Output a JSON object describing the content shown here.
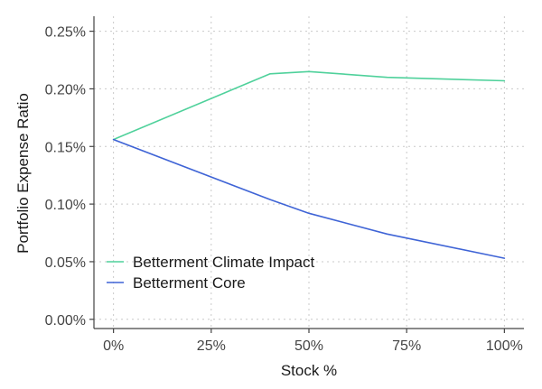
{
  "chart_data": {
    "type": "line",
    "title": "",
    "xlabel": "Stock %",
    "ylabel": "Portfolio Expense Ratio",
    "x_ticks": [
      {
        "value": 0,
        "label": "0%"
      },
      {
        "value": 25,
        "label": "25%"
      },
      {
        "value": 50,
        "label": "50%"
      },
      {
        "value": 75,
        "label": "75%"
      },
      {
        "value": 100,
        "label": "100%"
      }
    ],
    "y_ticks": [
      {
        "value": 0.0,
        "label": "0.00%"
      },
      {
        "value": 0.05,
        "label": "0.05%"
      },
      {
        "value": 0.1,
        "label": "0.10%"
      },
      {
        "value": 0.15,
        "label": "0.15%"
      },
      {
        "value": 0.2,
        "label": "0.20%"
      },
      {
        "value": 0.25,
        "label": "0.25%"
      }
    ],
    "xlim": [
      -5,
      105
    ],
    "ylim": [
      -0.008,
      0.263
    ],
    "grid": true,
    "legend_position": "bottom-left",
    "series": [
      {
        "name": "Betterment Climate Impact",
        "color": "#4fd19b",
        "points": [
          {
            "x": 0,
            "y": 0.156
          },
          {
            "x": 40,
            "y": 0.213
          },
          {
            "x": 50,
            "y": 0.215
          },
          {
            "x": 70,
            "y": 0.21
          },
          {
            "x": 100,
            "y": 0.207
          }
        ]
      },
      {
        "name": "Betterment Core",
        "color": "#3f64d6",
        "points": [
          {
            "x": 0,
            "y": 0.156
          },
          {
            "x": 40,
            "y": 0.104
          },
          {
            "x": 50,
            "y": 0.092
          },
          {
            "x": 70,
            "y": 0.074
          },
          {
            "x": 100,
            "y": 0.053
          }
        ]
      }
    ]
  }
}
